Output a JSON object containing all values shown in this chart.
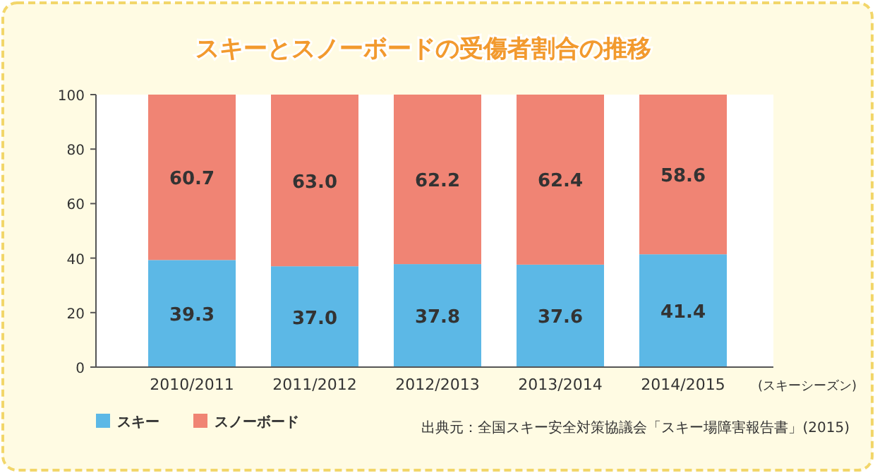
{
  "chart_data": {
    "type": "bar",
    "stacked": true,
    "title": "スキーとスノーボードの受傷者割合の推移",
    "categories": [
      "2010/2011",
      "2011/2012",
      "2012/2013",
      "2013/2014",
      "2014/2015"
    ],
    "xlabel": "(スキーシーズン)",
    "series": [
      {
        "name": "スキー",
        "color": "#5cb8e6",
        "values": [
          39.3,
          37.0,
          37.8,
          37.6,
          41.4
        ],
        "value_labels": [
          "39.3",
          "37.0",
          "37.8",
          "37.6",
          "41.4"
        ]
      },
      {
        "name": "スノーボード",
        "color": "#f08474",
        "values": [
          60.7,
          63.0,
          62.2,
          62.4,
          58.6
        ],
        "value_labels": [
          "60.7",
          "63.0",
          "62.2",
          "62.4",
          "58.6"
        ]
      }
    ],
    "ylim": [
      0,
      100
    ],
    "yticks": [
      0,
      20,
      40,
      60,
      80,
      100
    ],
    "grid": false,
    "legend": "bottom left",
    "annotations": [
      "出典元：全国スキー安全対策協議会「スキー場障害報告書」(2015)"
    ]
  }
}
